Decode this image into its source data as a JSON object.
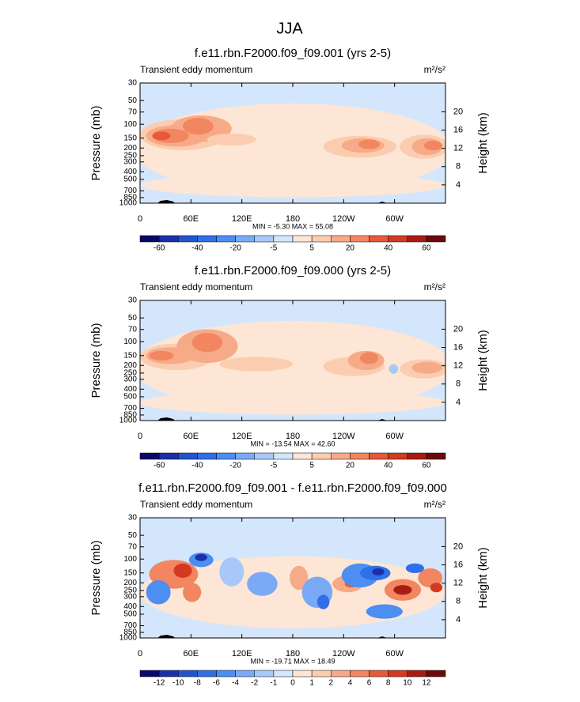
{
  "title": "JJA",
  "chart_data": [
    {
      "type": "contour",
      "title": "f.e11.rbn.F2000.f09_f09.001 (yrs 2-5)",
      "subtitle": "Transient eddy momentum",
      "units": "m²/s²",
      "ylabel": "Pressure (mb)",
      "y2label": "Height (km)",
      "xlim": [
        0,
        360
      ],
      "xticks": [
        0,
        {
          "value": 60,
          "label": "60E"
        },
        {
          "value": 120,
          "label": "120E"
        },
        180,
        {
          "value": 240,
          "label": "120W"
        },
        {
          "value": 300,
          "label": "60W"
        }
      ],
      "ylim": [
        1000,
        30
      ],
      "log_y": true,
      "yticks": [
        30,
        50,
        70,
        100,
        150,
        200,
        250,
        300,
        400,
        500,
        700,
        850,
        1000
      ],
      "y2ticks": [
        4,
        8,
        12,
        16,
        20
      ],
      "annotation": "MIN = -5.30  MAX = 55.08",
      "colorbar": {
        "colors": [
          "#08086b",
          "#1b2fa8",
          "#2255cc",
          "#2f6fe8",
          "#4c8ef2",
          "#7aaaf5",
          "#a7c8f8",
          "#d4e6fb",
          "#fde6d5",
          "#fbcdb0",
          "#f7aa88",
          "#f28660",
          "#e8583a",
          "#d33a22",
          "#a81c14",
          "#6b0a0a"
        ],
        "ticks": [
          -60,
          -40,
          -20,
          -5,
          5,
          20,
          40,
          60
        ]
      }
    },
    {
      "type": "contour",
      "title": "f.e11.rbn.F2000.f09_f09.000 (yrs 2-5)",
      "subtitle": "Transient eddy momentum",
      "units": "m²/s²",
      "ylabel": "Pressure (mb)",
      "y2label": "Height (km)",
      "xlim": [
        0,
        360
      ],
      "xticks": [
        0,
        {
          "value": 60,
          "label": "60E"
        },
        {
          "value": 120,
          "label": "120E"
        },
        180,
        {
          "value": 240,
          "label": "120W"
        },
        {
          "value": 300,
          "label": "60W"
        }
      ],
      "ylim": [
        1000,
        30
      ],
      "log_y": true,
      "yticks": [
        30,
        50,
        70,
        100,
        150,
        200,
        250,
        300,
        400,
        500,
        700,
        850,
        1000
      ],
      "y2ticks": [
        4,
        8,
        12,
        16,
        20
      ],
      "annotation": "MIN = -13.54  MAX = 42.60",
      "colorbar": {
        "colors": [
          "#08086b",
          "#1b2fa8",
          "#2255cc",
          "#2f6fe8",
          "#4c8ef2",
          "#7aaaf5",
          "#a7c8f8",
          "#d4e6fb",
          "#fde6d5",
          "#fbcdb0",
          "#f7aa88",
          "#f28660",
          "#e8583a",
          "#d33a22",
          "#a81c14",
          "#6b0a0a"
        ],
        "ticks": [
          -60,
          -40,
          -20,
          -5,
          5,
          20,
          40,
          60
        ]
      }
    },
    {
      "type": "contour",
      "title": "f.e11.rbn.F2000.f09_f09.001 - f.e11.rbn.F2000.f09_f09.000",
      "subtitle": "Transient eddy momentum",
      "units": "m²/s²",
      "ylabel": "Pressure (mb)",
      "y2label": "Height (km)",
      "xlim": [
        0,
        360
      ],
      "xticks": [
        0,
        {
          "value": 60,
          "label": "60E"
        },
        {
          "value": 120,
          "label": "120E"
        },
        180,
        {
          "value": 240,
          "label": "120W"
        },
        {
          "value": 300,
          "label": "60W"
        }
      ],
      "ylim": [
        1000,
        30
      ],
      "log_y": true,
      "yticks": [
        30,
        50,
        70,
        100,
        150,
        200,
        250,
        300,
        400,
        500,
        700,
        850,
        1000
      ],
      "y2ticks": [
        4,
        8,
        12,
        16,
        20
      ],
      "annotation": "MIN = -19.71  MAX = 18.49",
      "colorbar": {
        "colors": [
          "#08086b",
          "#1b2fa8",
          "#2255cc",
          "#2f6fe8",
          "#4c8ef2",
          "#7aaaf5",
          "#a7c8f8",
          "#d4e6fb",
          "#fde6d5",
          "#fbcdb0",
          "#f7aa88",
          "#f28660",
          "#e8583a",
          "#d33a22",
          "#a81c14",
          "#6b0a0a"
        ],
        "ticks": [
          -12,
          -10,
          -8,
          -6,
          -4,
          -2,
          -1,
          0,
          1,
          2,
          4,
          6,
          8,
          10,
          12
        ]
      }
    }
  ]
}
